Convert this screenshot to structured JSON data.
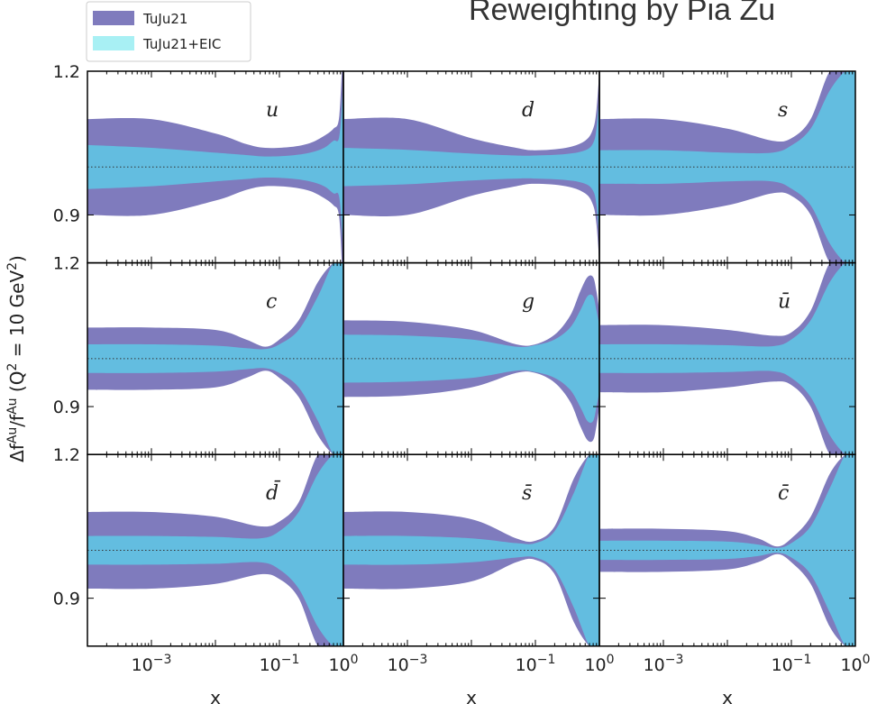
{
  "header": {
    "title": "Reweighting by Pia Zu"
  },
  "colors": {
    "outer": "#7f7bbd",
    "inner": "#63bde0",
    "legend_inner_swatch": "#a8f0f4"
  },
  "chart_data": {
    "type": "area",
    "layout": "3x3 grid",
    "xscale": "log",
    "xlim": [
      0.0001,
      1.0
    ],
    "ylim": [
      0.8,
      1.2
    ],
    "xticks": [
      {
        "value": 0.001,
        "label": "10",
        "exp": "−3"
      },
      {
        "value": 0.1,
        "label": "10",
        "exp": "−1"
      },
      {
        "value": 1.0,
        "label": "10",
        "exp": "0"
      }
    ],
    "yticks": [
      {
        "value": 0.9,
        "label": "0.9"
      },
      {
        "value": 1.2,
        "label": "1.2"
      }
    ],
    "xlabel": "x",
    "ylabel_parts": {
      "lhs": "Δf",
      "lhs_sup": "Au",
      "mid": "/f",
      "mid_sup": "Au",
      "q": "(Q",
      "q_sup": "2",
      "rest": " = 10 GeV",
      "rest_sup": "2",
      "close": ")"
    },
    "reference_line": 1.0,
    "legend": {
      "position": "top-left-outside",
      "entries": [
        {
          "label": "TuJu21",
          "color": "#7f7bbd"
        },
        {
          "label": "TuJu21+EIC",
          "color": "#a8f0f4"
        }
      ]
    },
    "panels": [
      {
        "label": "u",
        "x": [
          0.0001,
          0.001,
          0.01,
          0.03,
          0.06,
          0.15,
          0.3,
          0.5,
          0.7,
          0.85,
          0.95,
          1.0
        ],
        "outer_upper": [
          1.1,
          1.1,
          1.07,
          1.048,
          1.04,
          1.042,
          1.05,
          1.065,
          1.08,
          1.1,
          1.2,
          1.2
        ],
        "outer_lower": [
          0.9,
          0.9,
          0.93,
          0.952,
          0.96,
          0.958,
          0.95,
          0.935,
          0.92,
          0.9,
          0.8,
          0.8
        ],
        "inner_upper": [
          1.046,
          1.04,
          1.03,
          1.025,
          1.022,
          1.024,
          1.03,
          1.04,
          1.055,
          1.06,
          1.13,
          1.2
        ],
        "inner_lower": [
          0.954,
          0.96,
          0.97,
          0.975,
          0.978,
          0.976,
          0.97,
          0.96,
          0.945,
          0.94,
          0.87,
          0.8
        ]
      },
      {
        "label": "d",
        "x": [
          0.0001,
          0.001,
          0.01,
          0.05,
          0.1,
          0.3,
          0.6,
          0.8,
          0.9,
          1.0
        ],
        "outer_upper": [
          1.1,
          1.1,
          1.06,
          1.04,
          1.035,
          1.04,
          1.055,
          1.08,
          1.12,
          1.2
        ],
        "outer_lower": [
          0.9,
          0.9,
          0.94,
          0.96,
          0.965,
          0.96,
          0.945,
          0.92,
          0.88,
          0.8
        ],
        "inner_upper": [
          1.04,
          1.036,
          1.028,
          1.024,
          1.024,
          1.027,
          1.035,
          1.05,
          1.08,
          1.15
        ],
        "inner_lower": [
          0.96,
          0.964,
          0.972,
          0.976,
          0.976,
          0.973,
          0.965,
          0.95,
          0.92,
          0.85
        ]
      },
      {
        "label": "s",
        "x": [
          0.0001,
          0.001,
          0.01,
          0.05,
          0.1,
          0.2,
          0.4,
          0.7,
          1.0
        ],
        "outer_upper": [
          1.1,
          1.1,
          1.08,
          1.055,
          1.06,
          1.1,
          1.2,
          1.2,
          1.2
        ],
        "outer_lower": [
          0.9,
          0.9,
          0.92,
          0.945,
          0.94,
          0.9,
          0.8,
          0.8,
          0.8
        ],
        "inner_upper": [
          1.035,
          1.035,
          1.03,
          1.03,
          1.045,
          1.08,
          1.16,
          1.2,
          1.2
        ],
        "inner_lower": [
          0.965,
          0.965,
          0.97,
          0.97,
          0.955,
          0.92,
          0.84,
          0.8,
          0.8
        ]
      },
      {
        "label": "c",
        "x": [
          0.0001,
          0.001,
          0.01,
          0.03,
          0.06,
          0.1,
          0.2,
          0.4,
          0.7,
          1.0
        ],
        "outer_upper": [
          1.065,
          1.065,
          1.06,
          1.04,
          1.025,
          1.04,
          1.08,
          1.16,
          1.2,
          1.2
        ],
        "outer_lower": [
          0.935,
          0.935,
          0.94,
          0.96,
          0.975,
          0.96,
          0.92,
          0.84,
          0.8,
          0.8
        ],
        "inner_upper": [
          1.03,
          1.03,
          1.027,
          1.022,
          1.02,
          1.03,
          1.06,
          1.13,
          1.2,
          1.2
        ],
        "inner_lower": [
          0.97,
          0.97,
          0.973,
          0.978,
          0.98,
          0.97,
          0.94,
          0.87,
          0.8,
          0.8
        ]
      },
      {
        "label": "g",
        "x": [
          0.0001,
          0.001,
          0.01,
          0.05,
          0.1,
          0.2,
          0.35,
          0.5,
          0.65,
          0.8,
          0.9,
          1.0
        ],
        "outer_upper": [
          1.08,
          1.077,
          1.06,
          1.03,
          1.03,
          1.05,
          1.09,
          1.14,
          1.17,
          1.17,
          1.14,
          1.1
        ],
        "outer_lower": [
          0.92,
          0.923,
          0.94,
          0.97,
          0.97,
          0.95,
          0.91,
          0.86,
          0.83,
          0.83,
          0.86,
          0.9
        ],
        "inner_upper": [
          1.05,
          1.048,
          1.04,
          1.025,
          1.028,
          1.04,
          1.065,
          1.1,
          1.13,
          1.13,
          1.1,
          1.07
        ],
        "inner_lower": [
          0.95,
          0.952,
          0.96,
          0.975,
          0.972,
          0.96,
          0.935,
          0.9,
          0.87,
          0.87,
          0.9,
          0.93
        ]
      },
      {
        "label": "ū",
        "x": [
          0.0001,
          0.001,
          0.01,
          0.05,
          0.1,
          0.2,
          0.4,
          0.7,
          1.0
        ],
        "outer_upper": [
          1.07,
          1.07,
          1.06,
          1.048,
          1.055,
          1.1,
          1.2,
          1.2,
          1.2
        ],
        "outer_lower": [
          0.93,
          0.93,
          0.94,
          0.952,
          0.945,
          0.9,
          0.8,
          0.8,
          0.8
        ],
        "inner_upper": [
          1.03,
          1.03,
          1.028,
          1.026,
          1.04,
          1.08,
          1.16,
          1.2,
          1.2
        ],
        "inner_lower": [
          0.97,
          0.97,
          0.972,
          0.974,
          0.96,
          0.92,
          0.84,
          0.8,
          0.8
        ]
      },
      {
        "label": "d̄",
        "x": [
          0.0001,
          0.001,
          0.01,
          0.05,
          0.1,
          0.2,
          0.4,
          0.7,
          1.0
        ],
        "outer_upper": [
          1.08,
          1.08,
          1.07,
          1.05,
          1.06,
          1.1,
          1.2,
          1.2,
          1.2
        ],
        "outer_lower": [
          0.92,
          0.92,
          0.93,
          0.95,
          0.94,
          0.9,
          0.8,
          0.8,
          0.8
        ],
        "inner_upper": [
          1.03,
          1.03,
          1.028,
          1.025,
          1.04,
          1.08,
          1.16,
          1.2,
          1.2
        ],
        "inner_lower": [
          0.97,
          0.97,
          0.972,
          0.975,
          0.96,
          0.92,
          0.84,
          0.8,
          0.8
        ]
      },
      {
        "label": "s̄",
        "x": [
          0.0001,
          0.001,
          0.01,
          0.05,
          0.1,
          0.2,
          0.4,
          0.7,
          1.0
        ],
        "outer_upper": [
          1.08,
          1.08,
          1.065,
          1.025,
          1.02,
          1.05,
          1.15,
          1.2,
          1.2
        ],
        "outer_lower": [
          0.92,
          0.92,
          0.935,
          0.975,
          0.98,
          0.95,
          0.85,
          0.8,
          0.8
        ],
        "inner_upper": [
          1.03,
          1.03,
          1.025,
          1.015,
          1.015,
          1.04,
          1.12,
          1.2,
          1.2
        ],
        "inner_lower": [
          0.97,
          0.97,
          0.975,
          0.985,
          0.985,
          0.96,
          0.88,
          0.8,
          0.8
        ]
      },
      {
        "label": "c̄",
        "x": [
          0.0001,
          0.001,
          0.01,
          0.03,
          0.06,
          0.1,
          0.2,
          0.4,
          0.7,
          1.0
        ],
        "outer_upper": [
          1.045,
          1.045,
          1.04,
          1.025,
          1.008,
          1.025,
          1.07,
          1.16,
          1.2,
          1.2
        ],
        "outer_lower": [
          0.955,
          0.955,
          0.96,
          0.975,
          0.992,
          0.975,
          0.93,
          0.84,
          0.8,
          0.8
        ],
        "inner_upper": [
          1.02,
          1.02,
          1.018,
          1.012,
          1.005,
          1.015,
          1.05,
          1.13,
          1.2,
          1.2
        ],
        "inner_lower": [
          0.98,
          0.98,
          0.982,
          0.988,
          0.995,
          0.985,
          0.95,
          0.87,
          0.8,
          0.8
        ]
      }
    ]
  }
}
